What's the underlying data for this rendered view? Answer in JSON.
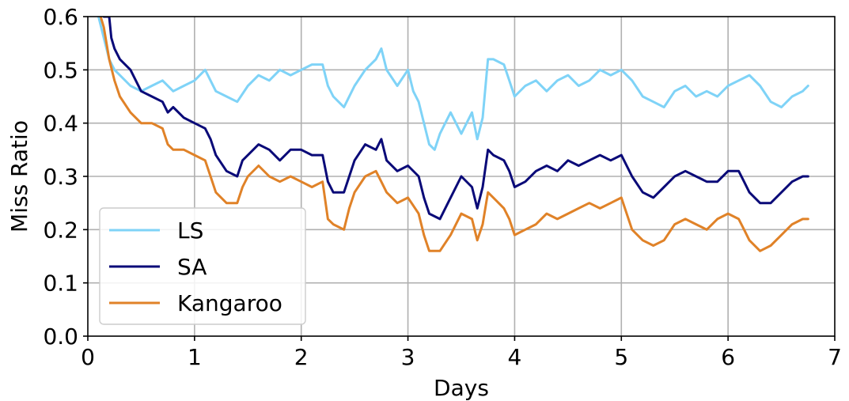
{
  "chart_data": {
    "type": "line",
    "title": "",
    "xlabel": "Days",
    "ylabel": "Miss Ratio",
    "xlim": [
      0,
      7
    ],
    "ylim": [
      0,
      0.6
    ],
    "xticks": [
      0,
      1,
      2,
      3,
      4,
      5,
      6,
      7
    ],
    "xtick_labels": [
      "0",
      "1",
      "2",
      "3",
      "4",
      "5",
      "6",
      "7"
    ],
    "yticks": [
      0,
      0.1,
      0.2,
      0.3,
      0.4,
      0.5,
      0.6
    ],
    "ytick_labels": [
      "0.0",
      "0.1",
      "0.2",
      "0.3",
      "0.4",
      "0.5",
      "0.6"
    ],
    "grid": true,
    "legend_position": "lower-left",
    "series": [
      {
        "name": "LS",
        "color": "#7fd3f7",
        "x": [
          0.1,
          0.15,
          0.2,
          0.25,
          0.3,
          0.4,
          0.5,
          0.6,
          0.7,
          0.8,
          0.9,
          1.0,
          1.1,
          1.2,
          1.3,
          1.4,
          1.5,
          1.6,
          1.7,
          1.8,
          1.9,
          2.0,
          2.1,
          2.2,
          2.25,
          2.3,
          2.4,
          2.5,
          2.6,
          2.7,
          2.75,
          2.8,
          2.9,
          3.0,
          3.05,
          3.1,
          3.15,
          3.2,
          3.25,
          3.3,
          3.4,
          3.5,
          3.6,
          3.65,
          3.7,
          3.75,
          3.8,
          3.9,
          3.95,
          4.0,
          4.1,
          4.2,
          4.3,
          4.4,
          4.5,
          4.6,
          4.7,
          4.8,
          4.9,
          5.0,
          5.1,
          5.2,
          5.3,
          5.4,
          5.5,
          5.6,
          5.7,
          5.8,
          5.9,
          6.0,
          6.1,
          6.2,
          6.3,
          6.4,
          6.5,
          6.6,
          6.7,
          6.75
        ],
        "y": [
          0.6,
          0.56,
          0.52,
          0.5,
          0.49,
          0.47,
          0.46,
          0.47,
          0.48,
          0.46,
          0.47,
          0.48,
          0.5,
          0.46,
          0.45,
          0.44,
          0.47,
          0.49,
          0.48,
          0.5,
          0.49,
          0.5,
          0.51,
          0.51,
          0.47,
          0.45,
          0.43,
          0.47,
          0.5,
          0.52,
          0.54,
          0.5,
          0.47,
          0.5,
          0.46,
          0.44,
          0.4,
          0.36,
          0.35,
          0.38,
          0.42,
          0.38,
          0.42,
          0.37,
          0.41,
          0.52,
          0.52,
          0.51,
          0.48,
          0.45,
          0.47,
          0.48,
          0.46,
          0.48,
          0.49,
          0.47,
          0.48,
          0.5,
          0.49,
          0.5,
          0.48,
          0.45,
          0.44,
          0.43,
          0.46,
          0.47,
          0.45,
          0.46,
          0.45,
          0.47,
          0.48,
          0.49,
          0.47,
          0.44,
          0.43,
          0.45,
          0.46,
          0.47
        ]
      },
      {
        "name": "SA",
        "color": "#0a0a78",
        "x": [
          0.15,
          0.2,
          0.22,
          0.25,
          0.3,
          0.4,
          0.5,
          0.6,
          0.7,
          0.75,
          0.8,
          0.9,
          1.0,
          1.1,
          1.15,
          1.2,
          1.3,
          1.4,
          1.45,
          1.5,
          1.6,
          1.7,
          1.8,
          1.9,
          2.0,
          2.1,
          2.2,
          2.25,
          2.3,
          2.4,
          2.45,
          2.5,
          2.6,
          2.7,
          2.75,
          2.8,
          2.9,
          3.0,
          3.1,
          3.15,
          3.2,
          3.3,
          3.4,
          3.5,
          3.6,
          3.65,
          3.7,
          3.75,
          3.8,
          3.9,
          3.95,
          4.0,
          4.1,
          4.2,
          4.3,
          4.4,
          4.5,
          4.6,
          4.7,
          4.8,
          4.9,
          5.0,
          5.1,
          5.2,
          5.3,
          5.4,
          5.5,
          5.6,
          5.7,
          5.8,
          5.9,
          6.0,
          6.1,
          6.15,
          6.2,
          6.3,
          6.4,
          6.5,
          6.6,
          6.7,
          6.75
        ],
        "y": [
          0.6,
          0.6,
          0.56,
          0.54,
          0.52,
          0.5,
          0.46,
          0.45,
          0.44,
          0.42,
          0.43,
          0.41,
          0.4,
          0.39,
          0.37,
          0.34,
          0.31,
          0.3,
          0.33,
          0.34,
          0.36,
          0.35,
          0.33,
          0.35,
          0.35,
          0.34,
          0.34,
          0.29,
          0.27,
          0.27,
          0.3,
          0.33,
          0.36,
          0.35,
          0.37,
          0.33,
          0.31,
          0.32,
          0.3,
          0.26,
          0.23,
          0.22,
          0.26,
          0.3,
          0.28,
          0.24,
          0.28,
          0.35,
          0.34,
          0.33,
          0.31,
          0.28,
          0.29,
          0.31,
          0.32,
          0.31,
          0.33,
          0.32,
          0.33,
          0.34,
          0.33,
          0.34,
          0.3,
          0.27,
          0.26,
          0.28,
          0.3,
          0.31,
          0.3,
          0.29,
          0.29,
          0.31,
          0.31,
          0.29,
          0.27,
          0.25,
          0.25,
          0.27,
          0.29,
          0.3,
          0.3
        ]
      },
      {
        "name": "Kangaroo",
        "color": "#e08228",
        "x": [
          0.12,
          0.15,
          0.2,
          0.25,
          0.3,
          0.4,
          0.5,
          0.6,
          0.7,
          0.75,
          0.8,
          0.9,
          1.0,
          1.1,
          1.15,
          1.2,
          1.3,
          1.4,
          1.45,
          1.5,
          1.6,
          1.7,
          1.8,
          1.9,
          2.0,
          2.1,
          2.2,
          2.25,
          2.3,
          2.4,
          2.45,
          2.5,
          2.6,
          2.7,
          2.75,
          2.8,
          2.9,
          3.0,
          3.1,
          3.15,
          3.2,
          3.3,
          3.4,
          3.5,
          3.6,
          3.65,
          3.7,
          3.75,
          3.8,
          3.9,
          3.95,
          4.0,
          4.1,
          4.2,
          4.3,
          4.4,
          4.5,
          4.6,
          4.7,
          4.8,
          4.9,
          5.0,
          5.1,
          5.2,
          5.3,
          5.4,
          5.5,
          5.6,
          5.7,
          5.8,
          5.9,
          6.0,
          6.1,
          6.15,
          6.2,
          6.3,
          6.4,
          6.5,
          6.6,
          6.7,
          6.75
        ],
        "y": [
          0.6,
          0.58,
          0.52,
          0.48,
          0.45,
          0.42,
          0.4,
          0.4,
          0.39,
          0.36,
          0.35,
          0.35,
          0.34,
          0.33,
          0.3,
          0.27,
          0.25,
          0.25,
          0.28,
          0.3,
          0.32,
          0.3,
          0.29,
          0.3,
          0.29,
          0.28,
          0.29,
          0.22,
          0.21,
          0.2,
          0.24,
          0.27,
          0.3,
          0.31,
          0.29,
          0.27,
          0.25,
          0.26,
          0.23,
          0.19,
          0.16,
          0.16,
          0.19,
          0.23,
          0.22,
          0.18,
          0.21,
          0.27,
          0.26,
          0.24,
          0.22,
          0.19,
          0.2,
          0.21,
          0.23,
          0.22,
          0.23,
          0.24,
          0.25,
          0.24,
          0.25,
          0.26,
          0.2,
          0.18,
          0.17,
          0.18,
          0.21,
          0.22,
          0.21,
          0.2,
          0.22,
          0.23,
          0.22,
          0.2,
          0.18,
          0.16,
          0.17,
          0.19,
          0.21,
          0.22,
          0.22
        ]
      }
    ]
  }
}
